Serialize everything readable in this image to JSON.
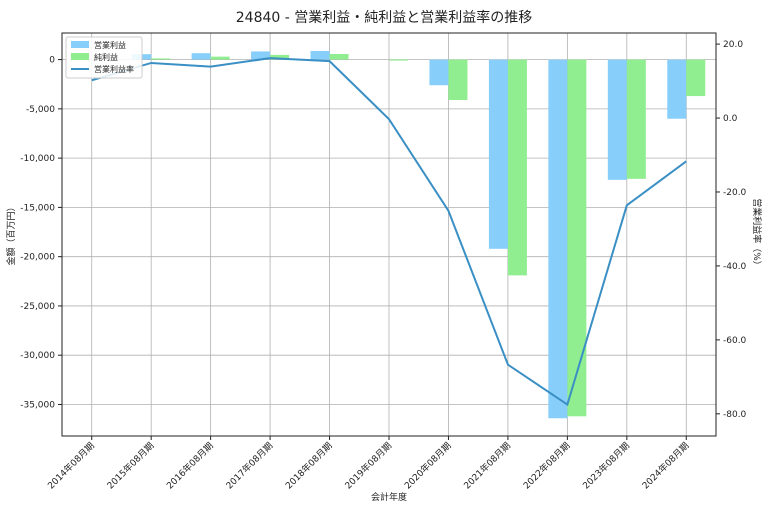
{
  "chart_data": {
    "type": "bar+line",
    "title": "24840 - 営業利益・純利益と営業利益率の推移",
    "xlabel": "会計年度",
    "ylabel_left": "金額（百万円）",
    "ylabel_right": "営業利益率（%）",
    "categories": [
      "2014年08月期",
      "2015年08月期",
      "2016年08月期",
      "2017年08月期",
      "2018年08月期",
      "2019年08月期",
      "2020年08月期",
      "2021年08月期",
      "2022年08月期",
      "2023年08月期",
      "2024年08月期"
    ],
    "series": [
      {
        "name": "営業利益",
        "kind": "bar",
        "axis": "left",
        "color": "#87cefa",
        "values": [
          0,
          550,
          650,
          830,
          870,
          0,
          -2600,
          -19200,
          -36400,
          -12200,
          -6000
        ]
      },
      {
        "name": "純利益",
        "kind": "bar",
        "axis": "left",
        "color": "#90ee90",
        "values": [
          0,
          120,
          300,
          480,
          570,
          -100,
          -4100,
          -21900,
          -36200,
          -12100,
          -3700
        ]
      },
      {
        "name": "営業利益率",
        "kind": "line",
        "axis": "right",
        "color": "#3a8fc4",
        "values": [
          10.2,
          14.9,
          13.9,
          16.2,
          15.4,
          -0.3,
          -25.1,
          -66.7,
          -77.5,
          -23.6,
          -11.7
        ]
      }
    ],
    "ylim_left": [
      -38200,
      2700
    ],
    "yticks_left": [
      0,
      -5000,
      -10000,
      -15000,
      -20000,
      -25000,
      -30000,
      -35000
    ],
    "yticks_left_labels": [
      "0",
      "-5,000",
      "-10,000",
      "-15,000",
      "-20,000",
      "-25,000",
      "-30,000",
      "-35,000"
    ],
    "ylim_right": [
      -86,
      23
    ],
    "yticks_right": [
      20,
      0,
      -20,
      -40,
      -60,
      -80
    ],
    "yticks_right_labels": [
      "20.0",
      "0.0",
      "-20.0",
      "-40.0",
      "-60.0",
      "-80.0"
    ],
    "grid": true,
    "legend_position": "top-left"
  }
}
